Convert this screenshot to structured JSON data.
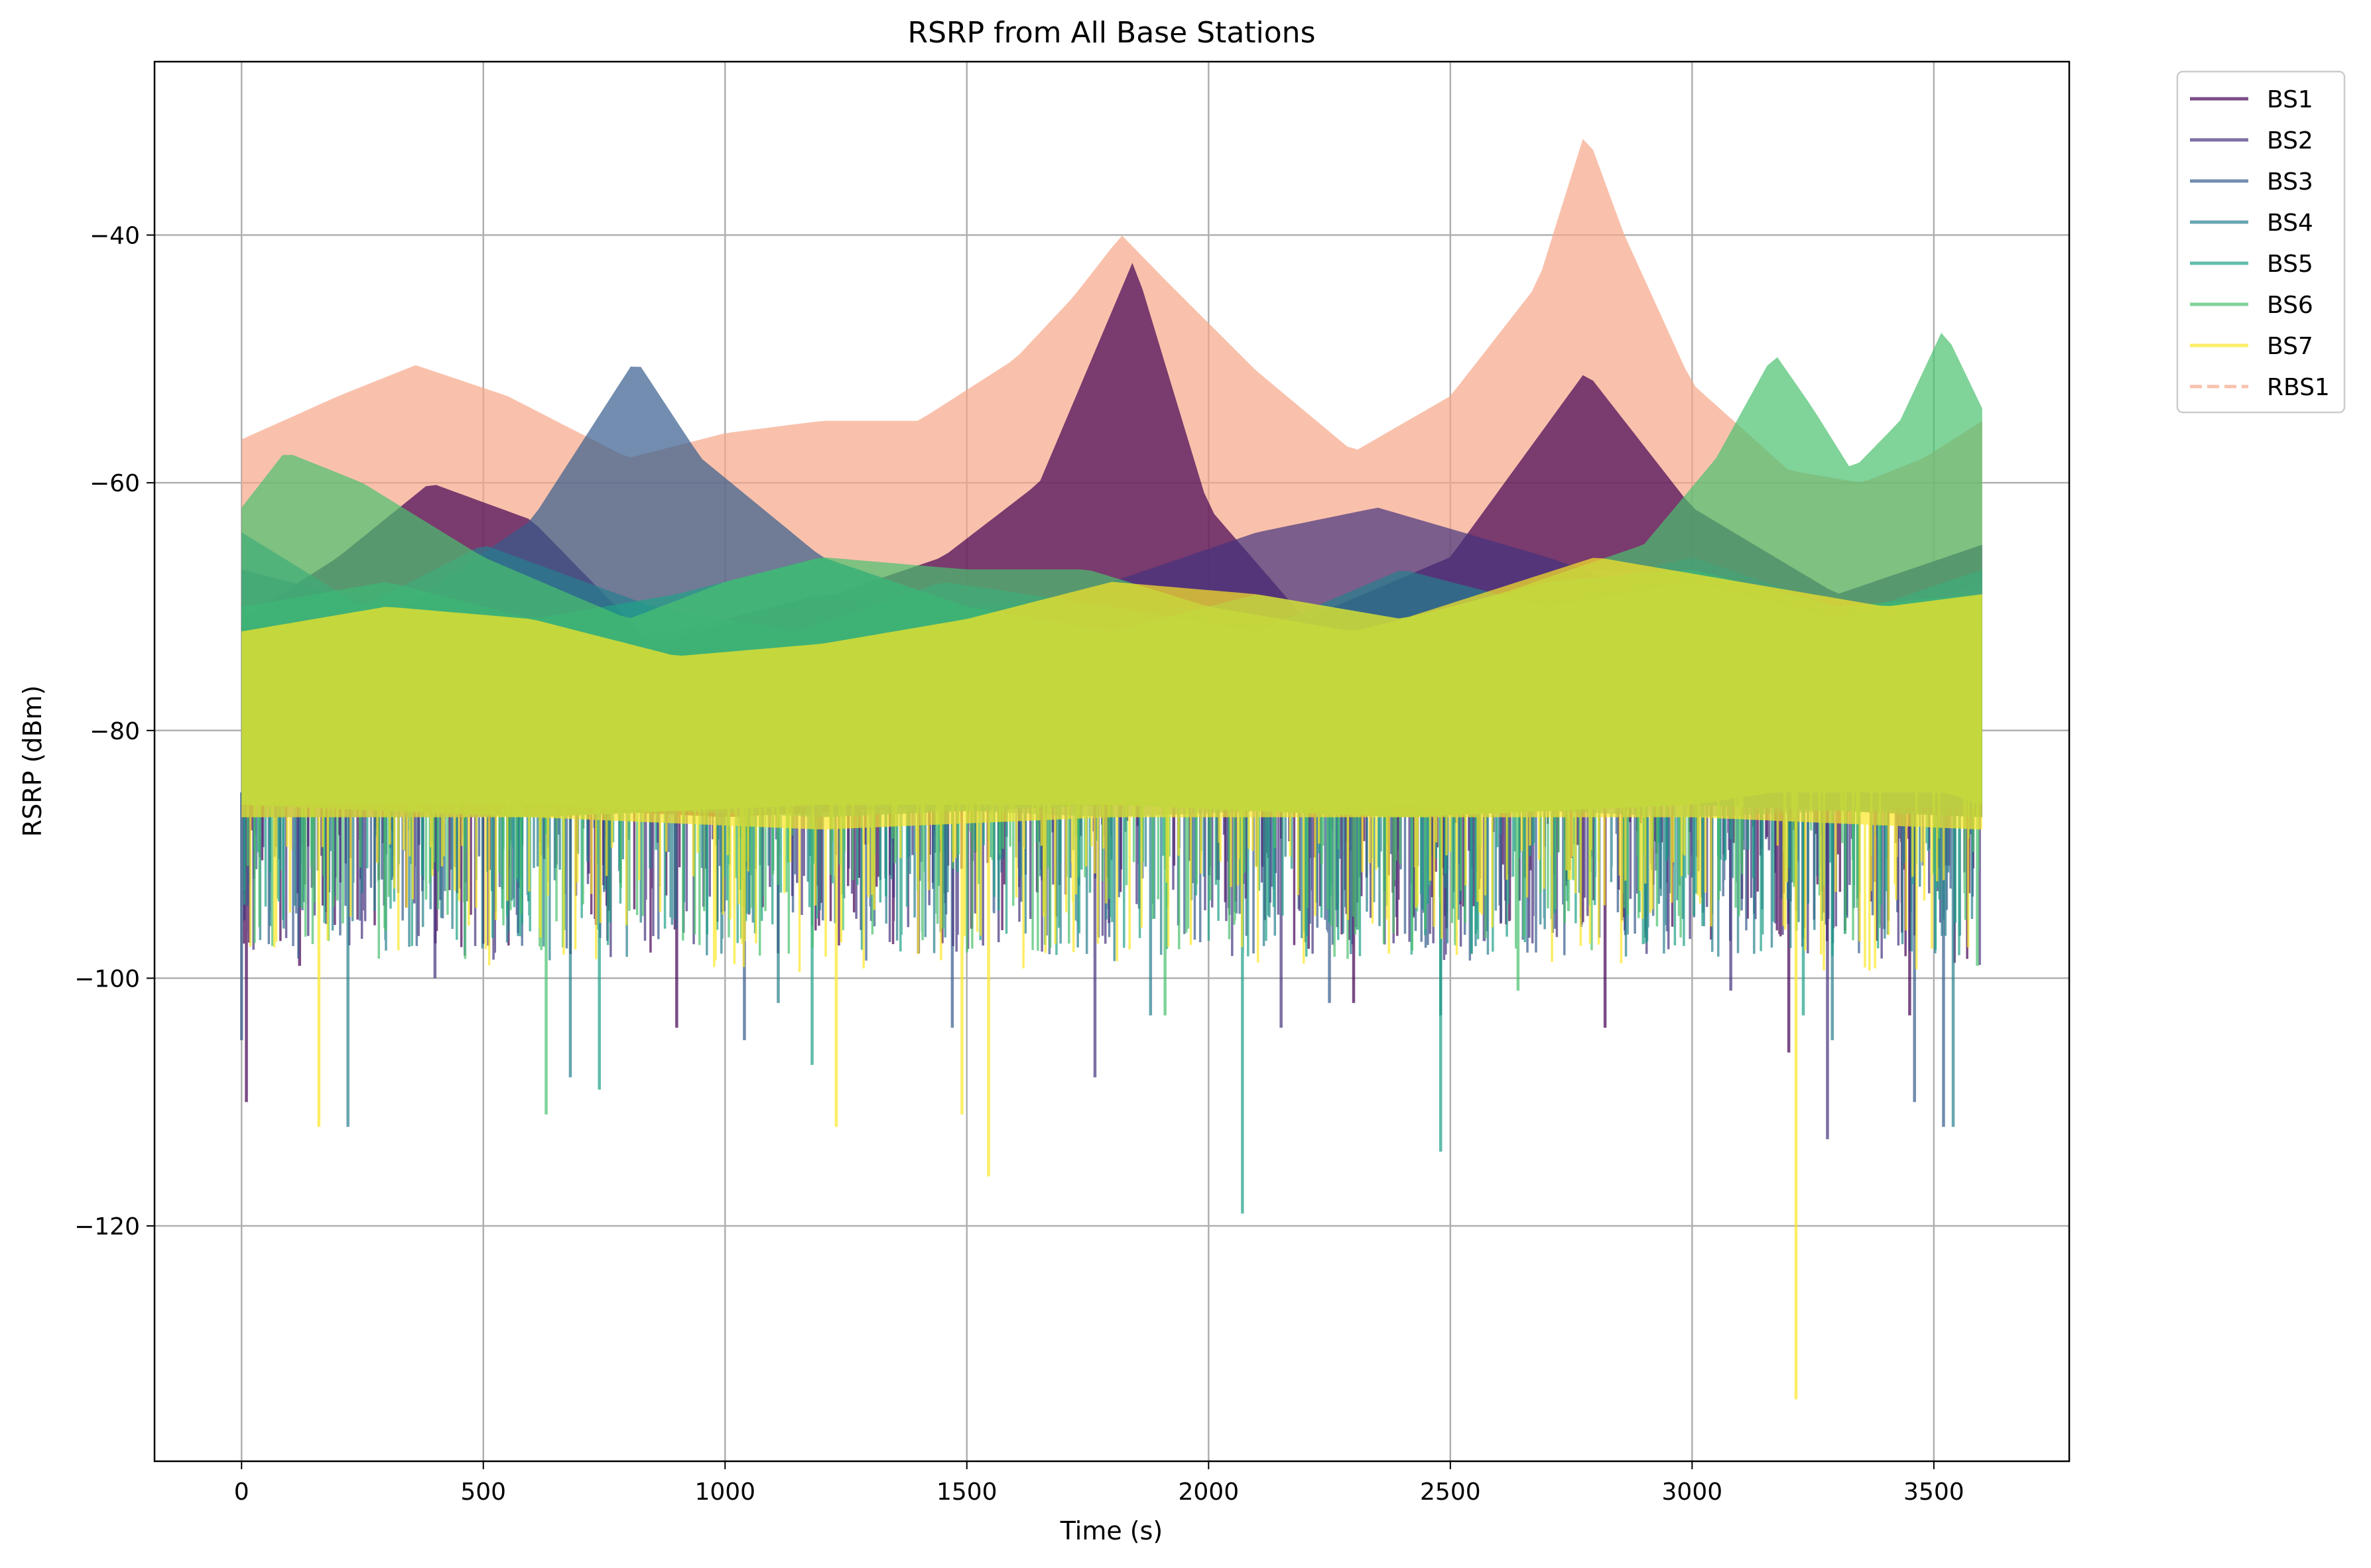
{
  "chart_data": {
    "type": "line",
    "title": "RSRP from All Base Stations",
    "xlabel": "Time (s)",
    "ylabel": "RSRP (dBm)",
    "xlim": [
      -180,
      3780
    ],
    "ylim": [
      -139,
      -26
    ],
    "xticks": [
      0,
      500,
      1000,
      1500,
      2000,
      2500,
      3000,
      3500
    ],
    "yticks": [
      -120,
      -100,
      -80,
      -60,
      -40
    ],
    "grid": true,
    "legend_position": "outside-top-right",
    "series": [
      {
        "name": "BS1",
        "color": "#440154",
        "style": "solid",
        "opacity": 0.7,
        "envelope_upper": [
          [
            0,
            -71
          ],
          [
            200,
            -66
          ],
          [
            390,
            -60
          ],
          [
            600,
            -63
          ],
          [
            850,
            -73
          ],
          [
            1150,
            -70
          ],
          [
            1450,
            -66
          ],
          [
            1650,
            -60
          ],
          [
            1845,
            -42
          ],
          [
            2000,
            -62
          ],
          [
            2200,
            -71
          ],
          [
            2500,
            -66
          ],
          [
            2780,
            -51
          ],
          [
            3000,
            -62
          ],
          [
            3300,
            -69
          ],
          [
            3600,
            -65
          ]
        ],
        "envelope_lower": [
          [
            0,
            -86
          ],
          [
            500,
            -86
          ],
          [
            1000,
            -87
          ],
          [
            1500,
            -86
          ],
          [
            1845,
            -84
          ],
          [
            2200,
            -86
          ],
          [
            2780,
            -84
          ],
          [
            3300,
            -86
          ],
          [
            3600,
            -87
          ]
        ],
        "dips": [
          [
            10,
            -110
          ],
          [
            120,
            -99
          ],
          [
            900,
            -104
          ],
          [
            1510,
            -96
          ],
          [
            2300,
            -102
          ],
          [
            2820,
            -104
          ],
          [
            3200,
            -106
          ],
          [
            3450,
            -103
          ]
        ]
      },
      {
        "name": "BS2",
        "color": "#46337e",
        "style": "solid",
        "opacity": 0.7,
        "envelope_upper": [
          [
            0,
            -67
          ],
          [
            300,
            -70
          ],
          [
            600,
            -73
          ],
          [
            900,
            -72
          ],
          [
            1200,
            -69
          ],
          [
            1500,
            -71
          ],
          [
            1800,
            -68
          ],
          [
            2100,
            -64
          ],
          [
            2350,
            -62
          ],
          [
            2700,
            -66
          ],
          [
            3000,
            -70
          ],
          [
            3300,
            -72
          ],
          [
            3600,
            -69
          ]
        ],
        "envelope_lower": [
          [
            0,
            -86
          ],
          [
            600,
            -87
          ],
          [
            1200,
            -86
          ],
          [
            1800,
            -86
          ],
          [
            2400,
            -87
          ],
          [
            3000,
            -86
          ],
          [
            3600,
            -87
          ]
        ],
        "dips": [
          [
            400,
            -100
          ],
          [
            1400,
            -98
          ],
          [
            1765,
            -108
          ],
          [
            2150,
            -104
          ],
          [
            2570,
            -97
          ],
          [
            3080,
            -101
          ],
          [
            3280,
            -113
          ]
        ]
      },
      {
        "name": "BS3",
        "color": "#365c8d",
        "style": "solid",
        "opacity": 0.7,
        "envelope_upper": [
          [
            0,
            -72
          ],
          [
            300,
            -71
          ],
          [
            600,
            -63
          ],
          [
            815,
            -50
          ],
          [
            950,
            -58
          ],
          [
            1200,
            -66
          ],
          [
            1500,
            -70
          ],
          [
            1800,
            -69
          ],
          [
            2100,
            -71
          ],
          [
            2400,
            -73
          ],
          [
            2700,
            -69
          ],
          [
            3000,
            -66
          ],
          [
            3300,
            -70
          ],
          [
            3600,
            -72
          ]
        ],
        "envelope_lower": [
          [
            0,
            -87
          ],
          [
            500,
            -87
          ],
          [
            815,
            -85
          ],
          [
            1200,
            -87
          ],
          [
            1800,
            -86
          ],
          [
            2400,
            -87
          ],
          [
            3000,
            -86
          ],
          [
            3600,
            -86
          ]
        ],
        "dips": [
          [
            0,
            -105
          ],
          [
            1040,
            -105
          ],
          [
            1470,
            -104
          ],
          [
            2250,
            -102
          ],
          [
            3460,
            -110
          ],
          [
            3520,
            -112
          ]
        ]
      },
      {
        "name": "BS4",
        "color": "#277f8e",
        "style": "solid",
        "opacity": 0.7,
        "envelope_upper": [
          [
            0,
            -64
          ],
          [
            250,
            -70
          ],
          [
            500,
            -65
          ],
          [
            850,
            -70
          ],
          [
            1150,
            -72
          ],
          [
            1450,
            -68
          ],
          [
            1800,
            -70
          ],
          [
            2100,
            -72
          ],
          [
            2400,
            -67
          ],
          [
            2700,
            -70
          ],
          [
            3000,
            -68
          ],
          [
            3300,
            -71
          ],
          [
            3600,
            -67
          ]
        ],
        "envelope_lower": [
          [
            0,
            -86
          ],
          [
            600,
            -87
          ],
          [
            1200,
            -86
          ],
          [
            1800,
            -87
          ],
          [
            2400,
            -86
          ],
          [
            3000,
            -87
          ],
          [
            3600,
            -86
          ]
        ],
        "dips": [
          [
            220,
            -112
          ],
          [
            680,
            -108
          ],
          [
            1110,
            -102
          ],
          [
            1880,
            -103
          ],
          [
            2480,
            -103
          ],
          [
            3290,
            -105
          ],
          [
            3540,
            -112
          ]
        ]
      },
      {
        "name": "BS5",
        "color": "#1fa187",
        "style": "solid",
        "opacity": 0.7,
        "envelope_upper": [
          [
            0,
            -70
          ],
          [
            300,
            -68
          ],
          [
            600,
            -71
          ],
          [
            900,
            -69
          ],
          [
            1200,
            -66
          ],
          [
            1500,
            -70
          ],
          [
            1800,
            -72
          ],
          [
            2100,
            -69
          ],
          [
            2400,
            -71
          ],
          [
            2700,
            -68
          ],
          [
            3000,
            -67
          ],
          [
            3300,
            -70
          ],
          [
            3600,
            -69
          ]
        ],
        "envelope_lower": [
          [
            0,
            -86
          ],
          [
            600,
            -86
          ],
          [
            1200,
            -87
          ],
          [
            1800,
            -86
          ],
          [
            2400,
            -87
          ],
          [
            3000,
            -86
          ],
          [
            3600,
            -87
          ]
        ],
        "dips": [
          [
            740,
            -109
          ],
          [
            1180,
            -107
          ],
          [
            2070,
            -119
          ],
          [
            2480,
            -114
          ],
          [
            3230,
            -103
          ]
        ]
      },
      {
        "name": "BS6",
        "color": "#4ac16d",
        "style": "solid",
        "opacity": 0.7,
        "envelope_upper": [
          [
            0,
            -62
          ],
          [
            90,
            -57.5
          ],
          [
            250,
            -60
          ],
          [
            500,
            -66
          ],
          [
            800,
            -71
          ],
          [
            1000,
            -68
          ],
          [
            1200,
            -66
          ],
          [
            1500,
            -67
          ],
          [
            1750,
            -67
          ],
          [
            2000,
            -70
          ],
          [
            2300,
            -72
          ],
          [
            2600,
            -69
          ],
          [
            2900,
            -65
          ],
          [
            3050,
            -58
          ],
          [
            3170,
            -49.5
          ],
          [
            3250,
            -54
          ],
          [
            3330,
            -59
          ],
          [
            3430,
            -55
          ],
          [
            3520,
            -47.5
          ],
          [
            3600,
            -54
          ]
        ],
        "envelope_lower": [
          [
            0,
            -86
          ],
          [
            600,
            -87
          ],
          [
            1200,
            -86
          ],
          [
            1800,
            -86
          ],
          [
            2400,
            -87
          ],
          [
            3000,
            -86
          ],
          [
            3170,
            -85
          ],
          [
            3520,
            -85
          ],
          [
            3600,
            -86
          ]
        ],
        "dips": [
          [
            630,
            -111
          ],
          [
            1450,
            -96
          ],
          [
            1910,
            -103
          ],
          [
            2640,
            -101
          ],
          [
            3590,
            -99
          ]
        ]
      },
      {
        "name": "BS7",
        "color": "#fde725",
        "style": "solid",
        "opacity": 0.7,
        "envelope_upper": [
          [
            0,
            -72
          ],
          [
            300,
            -70
          ],
          [
            600,
            -71
          ],
          [
            900,
            -74
          ],
          [
            1200,
            -73
          ],
          [
            1500,
            -71
          ],
          [
            1800,
            -68
          ],
          [
            2100,
            -69
          ],
          [
            2400,
            -71
          ],
          [
            2800,
            -66
          ],
          [
            3100,
            -68
          ],
          [
            3400,
            -70
          ],
          [
            3600,
            -69
          ]
        ],
        "envelope_lower": [
          [
            0,
            -87
          ],
          [
            600,
            -87
          ],
          [
            1200,
            -88
          ],
          [
            1800,
            -87
          ],
          [
            2400,
            -87
          ],
          [
            3000,
            -87
          ],
          [
            3600,
            -88
          ]
        ],
        "dips": [
          [
            160,
            -112
          ],
          [
            1230,
            -112
          ],
          [
            1490,
            -111
          ],
          [
            1545,
            -116
          ],
          [
            3215,
            -134
          ]
        ]
      },
      {
        "name": "RBS1",
        "color": "#f7a789",
        "style": "dashed",
        "opacity": 0.7,
        "envelope_upper": [
          [
            0,
            -56.5
          ],
          [
            200,
            -53
          ],
          [
            360,
            -50.5
          ],
          [
            550,
            -53
          ],
          [
            800,
            -58
          ],
          [
            1000,
            -56
          ],
          [
            1200,
            -55
          ],
          [
            1400,
            -55
          ],
          [
            1600,
            -50
          ],
          [
            1720,
            -45
          ],
          [
            1820,
            -40
          ],
          [
            1920,
            -44
          ],
          [
            2100,
            -51
          ],
          [
            2300,
            -57.5
          ],
          [
            2500,
            -53
          ],
          [
            2680,
            -44
          ],
          [
            2780,
            -31.5
          ],
          [
            2860,
            -40
          ],
          [
            3000,
            -52
          ],
          [
            3200,
            -59
          ],
          [
            3350,
            -60
          ],
          [
            3480,
            -58
          ],
          [
            3600,
            -55
          ]
        ],
        "envelope_lower": [
          [
            0,
            -72
          ],
          [
            300,
            -71
          ],
          [
            600,
            -72
          ],
          [
            900,
            -73
          ],
          [
            1200,
            -72
          ],
          [
            1500,
            -71
          ],
          [
            1800,
            -68
          ],
          [
            2100,
            -71
          ],
          [
            2400,
            -73
          ],
          [
            2800,
            -67
          ],
          [
            3100,
            -68
          ],
          [
            3400,
            -71
          ],
          [
            3600,
            -68
          ]
        ]
      }
    ]
  }
}
